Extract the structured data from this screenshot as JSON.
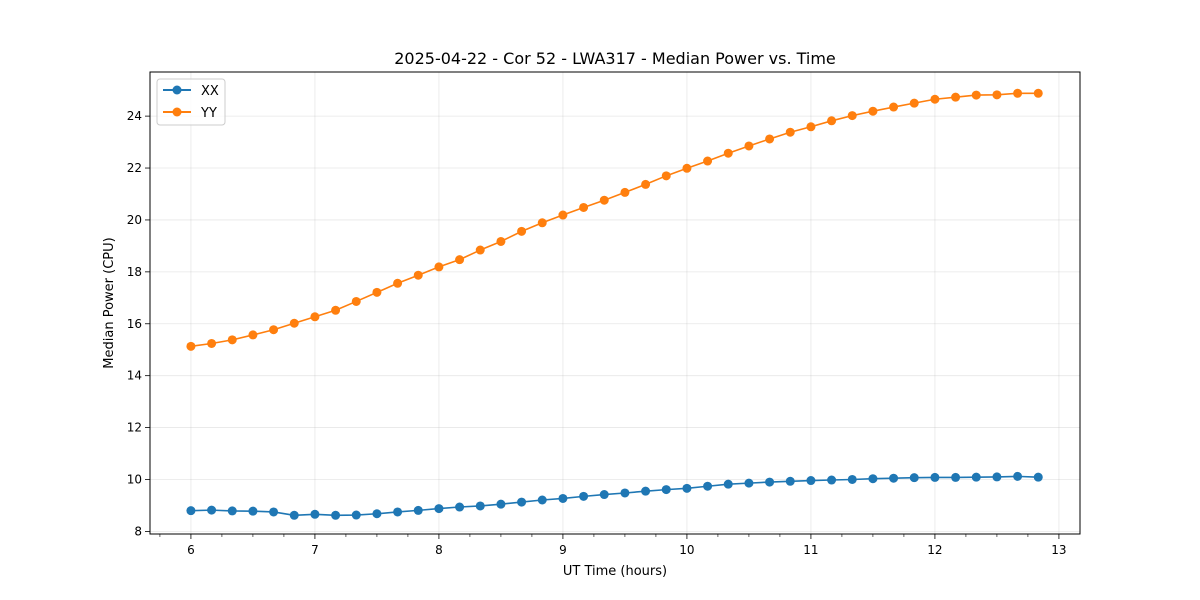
{
  "chart_data": {
    "type": "line",
    "title": "2025-04-22 - Cor 52 - LWA317 - Median Power vs. Time",
    "xlabel": "UT Time (hours)",
    "ylabel": "Median Power (CPU)",
    "xlim": [
      5.67,
      13.17
    ],
    "ylim": [
      7.9,
      25.7
    ],
    "xticks": [
      6,
      7,
      8,
      9,
      10,
      11,
      12,
      13
    ],
    "yticks": [
      8,
      10,
      12,
      14,
      16,
      18,
      20,
      22,
      24
    ],
    "xtick_labels": [
      "6",
      "7",
      "8",
      "9",
      "10",
      "11",
      "12",
      "13"
    ],
    "ytick_labels": [
      "8",
      "10",
      "12",
      "14",
      "16",
      "18",
      "20",
      "22",
      "24"
    ],
    "minor_xtick_step": 0.25,
    "grid": true,
    "legend_position": "upper-left",
    "x": [
      6.0,
      6.1667,
      6.3333,
      6.5,
      6.6667,
      6.8333,
      7.0,
      7.1667,
      7.3333,
      7.5,
      7.6667,
      7.8333,
      8.0,
      8.1667,
      8.3333,
      8.5,
      8.6667,
      8.8333,
      9.0,
      9.1667,
      9.3333,
      9.5,
      9.6667,
      9.8333,
      10.0,
      10.1667,
      10.3333,
      10.5,
      10.6667,
      10.8333,
      11.0,
      11.1667,
      11.3333,
      11.5,
      11.6667,
      11.8333,
      12.0,
      12.1667,
      12.3333,
      12.5,
      12.6667,
      12.8333
    ],
    "series": [
      {
        "name": "XX",
        "color": "#1f77b4",
        "values": [
          8.8,
          8.82,
          8.79,
          8.78,
          8.75,
          8.62,
          8.66,
          8.62,
          8.63,
          8.68,
          8.75,
          8.81,
          8.88,
          8.94,
          8.98,
          9.05,
          9.13,
          9.21,
          9.27,
          9.35,
          9.42,
          9.48,
          9.55,
          9.61,
          9.66,
          9.74,
          9.82,
          9.86,
          9.9,
          9.93,
          9.96,
          9.98,
          10.0,
          10.03,
          10.05,
          10.07,
          10.08,
          10.08,
          10.09,
          10.1,
          10.12,
          10.09
        ]
      },
      {
        "name": "YY",
        "color": "#ff7f0e",
        "values": [
          15.13,
          15.24,
          15.38,
          15.57,
          15.77,
          16.02,
          16.27,
          16.52,
          16.86,
          17.21,
          17.56,
          17.87,
          18.19,
          18.47,
          18.84,
          19.17,
          19.56,
          19.89,
          20.19,
          20.48,
          20.76,
          21.06,
          21.37,
          21.7,
          21.99,
          22.27,
          22.57,
          22.85,
          23.12,
          23.38,
          23.59,
          23.82,
          24.02,
          24.19,
          24.35,
          24.5,
          24.65,
          24.73,
          24.81,
          24.82,
          24.88,
          24.88
        ]
      }
    ]
  }
}
